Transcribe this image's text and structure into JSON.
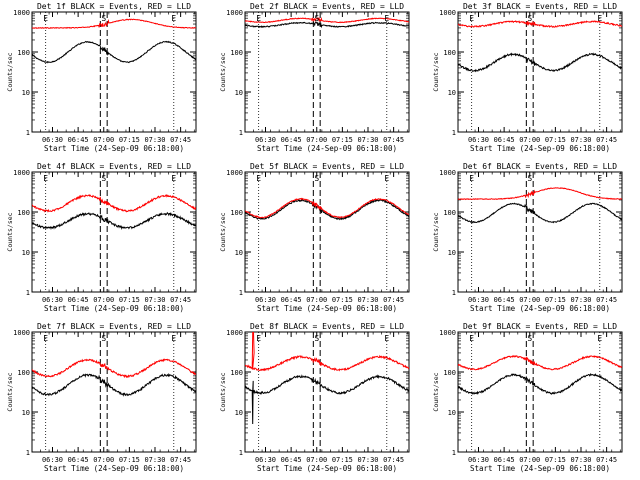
{
  "figure": {
    "background": "#ffffff",
    "events_color": "#000000",
    "lld_color": "#ff0000",
    "marker_labels": [
      "E",
      "S",
      "E"
    ]
  },
  "chart_data": [
    {
      "type": "line",
      "title": "Det 1f BLACK = Events, RED = LLD",
      "xlabel": "Start Time (24-Sep-09 06:18:00)",
      "ylabel": "Counts/sec",
      "yscale": "log",
      "ylim": [
        1,
        1000
      ],
      "yticks": [
        "1",
        "10",
        "100",
        "1000"
      ],
      "xlim": [
        0,
        96
      ],
      "xticks": [
        12,
        27,
        42,
        57,
        72,
        87
      ],
      "xticklabels": [
        "06:30",
        "06:45",
        "07:00",
        "07:15",
        "07:30",
        "07:45"
      ],
      "event_lines_min": [
        8,
        83
      ],
      "saa_lines_min": [
        40,
        44
      ],
      "grid": false,
      "series": [
        {
          "name": "BLACK = Events",
          "shape": "sine",
          "mean": 100,
          "amp": 1.8,
          "phase": 3.4,
          "noise": 0.03,
          "spike": false
        },
        {
          "name": "RED = LLD",
          "shape": "flat-hump",
          "base": 400,
          "peak": 650,
          "center": 58,
          "width": 24,
          "noise": 0.02,
          "spike": false
        }
      ]
    },
    {
      "type": "line",
      "title": "Det 2f BLACK = Events, RED = LLD",
      "xlabel": "Start Time (24-Sep-09 06:18:00)",
      "ylabel": "Counts/sec",
      "yscale": "log",
      "ylim": [
        1,
        1000
      ],
      "yticks": [
        "1",
        "10",
        "100",
        "1000"
      ],
      "xlim": [
        0,
        96
      ],
      "xticks": [
        12,
        27,
        42,
        57,
        72,
        87
      ],
      "xticklabels": [
        "06:30",
        "06:45",
        "07:00",
        "07:15",
        "07:30",
        "07:45"
      ],
      "event_lines_min": [
        8,
        83
      ],
      "saa_lines_min": [
        40,
        44
      ],
      "grid": false,
      "series": [
        {
          "name": "BLACK = Events",
          "shape": "sine",
          "mean": 480,
          "amp": 1.12,
          "phase": 3.4,
          "noise": 0.03,
          "spike": false
        },
        {
          "name": "RED = LLD",
          "shape": "sine",
          "mean": 620,
          "amp": 1.12,
          "phase": 3.4,
          "noise": 0.02,
          "spike": false
        }
      ]
    },
    {
      "type": "line",
      "title": "Det 3f BLACK = Events, RED = LLD",
      "xlabel": "Start Time (24-Sep-09 06:18:00)",
      "ylabel": "Counts/sec",
      "yscale": "log",
      "ylim": [
        1,
        1000
      ],
      "yticks": [
        "1",
        "10",
        "100",
        "1000"
      ],
      "xlim": [
        0,
        96
      ],
      "xticks": [
        12,
        27,
        42,
        57,
        72,
        87
      ],
      "xticklabels": [
        "06:30",
        "06:45",
        "07:00",
        "07:15",
        "07:30",
        "07:45"
      ],
      "event_lines_min": [
        8,
        83
      ],
      "saa_lines_min": [
        40,
        44
      ],
      "grid": false,
      "series": [
        {
          "name": "BLACK = Events",
          "shape": "sine",
          "mean": 55,
          "amp": 1.6,
          "phase": 3.4,
          "noise": 0.05,
          "spike": false
        },
        {
          "name": "RED = LLD",
          "shape": "sine",
          "mean": 500,
          "amp": 1.15,
          "phase": 3.4,
          "noise": 0.04,
          "spike": false
        }
      ]
    },
    {
      "type": "line",
      "title": "Det 4f BLACK = Events, RED = LLD",
      "xlabel": "Start Time (24-Sep-09 06:18:00)",
      "ylabel": "Counts/sec",
      "yscale": "log",
      "ylim": [
        1,
        1000
      ],
      "yticks": [
        "1",
        "10",
        "100",
        "1000"
      ],
      "xlim": [
        0,
        96
      ],
      "xticks": [
        12,
        27,
        42,
        57,
        72,
        87
      ],
      "xticklabels": [
        "06:30",
        "06:45",
        "07:00",
        "07:15",
        "07:30",
        "07:45"
      ],
      "event_lines_min": [
        8,
        83
      ],
      "saa_lines_min": [
        40,
        44
      ],
      "grid": false,
      "series": [
        {
          "name": "BLACK = Events",
          "shape": "sine",
          "mean": 60,
          "amp": 1.5,
          "phase": 3.4,
          "noise": 0.06,
          "spike": false
        },
        {
          "name": "RED = LLD",
          "shape": "sine",
          "mean": 165,
          "amp": 1.55,
          "phase": 3.4,
          "noise": 0.05,
          "spike": false
        }
      ]
    },
    {
      "type": "line",
      "title": "Det 5f BLACK = Events, RED = LLD",
      "xlabel": "Start Time (24-Sep-09 06:18:00)",
      "ylabel": "Counts/sec",
      "yscale": "log",
      "ylim": [
        1,
        1000
      ],
      "yticks": [
        "1",
        "10",
        "100",
        "1000"
      ],
      "xlim": [
        0,
        96
      ],
      "xticks": [
        12,
        27,
        42,
        57,
        72,
        87
      ],
      "xticklabels": [
        "06:30",
        "06:45",
        "07:00",
        "07:15",
        "07:30",
        "07:45"
      ],
      "event_lines_min": [
        8,
        83
      ],
      "saa_lines_min": [
        40,
        44
      ],
      "grid": false,
      "series": [
        {
          "name": "BLACK = Events",
          "shape": "sine",
          "mean": 115,
          "amp": 1.7,
          "phase": 3.4,
          "noise": 0.04,
          "spike": false
        },
        {
          "name": "RED = LLD",
          "shape": "sine",
          "mean": 125,
          "amp": 1.7,
          "phase": 3.4,
          "noise": 0.03,
          "spike": false
        }
      ]
    },
    {
      "type": "line",
      "title": "Det 6f BLACK = Events, RED = LLD",
      "xlabel": "Start Time (24-Sep-09 06:18:00)",
      "ylabel": "Counts/sec",
      "yscale": "log",
      "ylim": [
        1,
        1000
      ],
      "yticks": [
        "1",
        "10",
        "100",
        "1000"
      ],
      "xlim": [
        0,
        96
      ],
      "xticks": [
        12,
        27,
        42,
        57,
        72,
        87
      ],
      "xticklabels": [
        "06:30",
        "06:45",
        "07:00",
        "07:15",
        "07:30",
        "07:45"
      ],
      "event_lines_min": [
        8,
        83
      ],
      "saa_lines_min": [
        40,
        44
      ],
      "grid": false,
      "series": [
        {
          "name": "BLACK = Events",
          "shape": "sine",
          "mean": 95,
          "amp": 1.7,
          "phase": 3.4,
          "noise": 0.03,
          "spike": false
        },
        {
          "name": "RED = LLD",
          "shape": "flat-hump",
          "base": 210,
          "peak": 400,
          "center": 58,
          "width": 24,
          "noise": 0.02,
          "spike": false
        }
      ]
    },
    {
      "type": "line",
      "title": "Det 7f BLACK = Events, RED = LLD",
      "xlabel": "Start Time (24-Sep-09 06:18:00)",
      "ylabel": "Counts/sec",
      "yscale": "log",
      "ylim": [
        1,
        1000
      ],
      "yticks": [
        "1",
        "10",
        "100",
        "1000"
      ],
      "xlim": [
        0,
        96
      ],
      "xticks": [
        12,
        27,
        42,
        57,
        72,
        87
      ],
      "xticklabels": [
        "06:30",
        "06:45",
        "07:00",
        "07:15",
        "07:30",
        "07:45"
      ],
      "event_lines_min": [
        8,
        83
      ],
      "saa_lines_min": [
        40,
        44
      ],
      "grid": false,
      "series": [
        {
          "name": "BLACK = Events",
          "shape": "sine",
          "mean": 48,
          "amp": 1.75,
          "phase": 3.4,
          "noise": 0.06,
          "spike": false
        },
        {
          "name": "RED = LLD",
          "shape": "sine",
          "mean": 125,
          "amp": 1.6,
          "phase": 3.4,
          "noise": 0.05,
          "spike": false
        }
      ]
    },
    {
      "type": "line",
      "title": "Det 8f BLACK = Events, RED = LLD",
      "xlabel": "Start Time (24-Sep-09 06:18:00)",
      "ylabel": "Counts/sec",
      "yscale": "log",
      "ylim": [
        1,
        1000
      ],
      "yticks": [
        "1",
        "10",
        "100",
        "1000"
      ],
      "xlim": [
        0,
        96
      ],
      "xticks": [
        12,
        27,
        42,
        57,
        72,
        87
      ],
      "xticklabels": [
        "06:30",
        "06:45",
        "07:00",
        "07:15",
        "07:30",
        "07:45"
      ],
      "event_lines_min": [
        8,
        83
      ],
      "saa_lines_min": [
        40,
        44
      ],
      "grid": false,
      "series": [
        {
          "name": "BLACK = Events",
          "shape": "sine",
          "mean": 48,
          "amp": 1.6,
          "phase": 3.4,
          "noise": 0.06,
          "spike": true
        },
        {
          "name": "RED = LLD",
          "shape": "sine",
          "mean": 165,
          "amp": 1.45,
          "phase": 3.4,
          "noise": 0.05,
          "spike": true
        }
      ]
    },
    {
      "type": "line",
      "title": "Det 9f BLACK = Events, RED = LLD",
      "xlabel": "Start Time (24-Sep-09 06:18:00)",
      "ylabel": "Counts/sec",
      "yscale": "log",
      "ylim": [
        1,
        1000
      ],
      "yticks": [
        "1",
        "10",
        "100",
        "1000"
      ],
      "xlim": [
        0,
        96
      ],
      "xticks": [
        12,
        27,
        42,
        57,
        72,
        87
      ],
      "xticklabels": [
        "06:30",
        "06:45",
        "07:00",
        "07:15",
        "07:30",
        "07:45"
      ],
      "event_lines_min": [
        8,
        83
      ],
      "saa_lines_min": [
        40,
        44
      ],
      "grid": false,
      "series": [
        {
          "name": "BLACK = Events",
          "shape": "sine",
          "mean": 50,
          "amp": 1.7,
          "phase": 3.4,
          "noise": 0.05,
          "spike": false
        },
        {
          "name": "RED = LLD",
          "shape": "sine",
          "mean": 170,
          "amp": 1.45,
          "phase": 3.4,
          "noise": 0.04,
          "spike": false
        }
      ]
    }
  ]
}
